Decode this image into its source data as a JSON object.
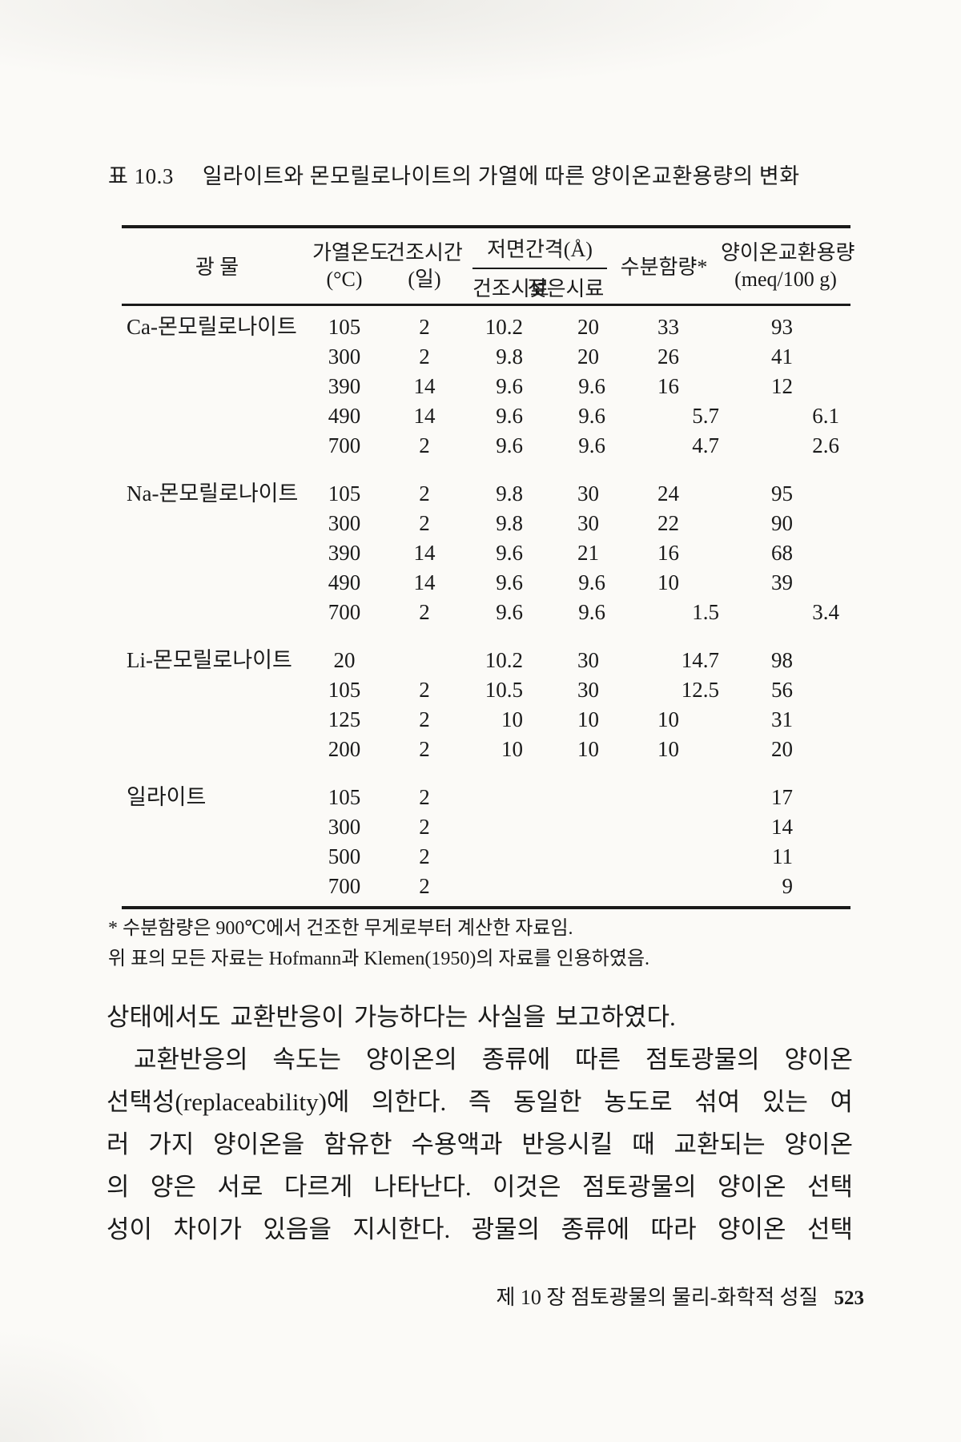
{
  "theme": {
    "ink": "#1a1a1a",
    "paper": "#fbfaf7"
  },
  "title": {
    "label": "표 10.3",
    "text": "일라이트와 몬모릴로나이트의 가열에 따른 양이온교환용량의 변화"
  },
  "table": {
    "headers": {
      "mineral": "광   물",
      "temp_line1": "가열온도",
      "temp_line2": "(°C)",
      "time_line1": "건조시간",
      "time_line2": "(일)",
      "spacing_group": "저면간격(Å)",
      "spacing_dry": "건조시료",
      "spacing_wet": "젖은시료",
      "moisture": "수분함량*",
      "cec_line1": "양이온교환용량",
      "cec_line2": "(meq/100 g)"
    },
    "groups": [
      {
        "mineral": "Ca-몬모릴로나이트",
        "rows": [
          [
            "105",
            "2",
            "10.2",
            "20",
            "33",
            "93"
          ],
          [
            "300",
            "2",
            "9.8",
            "20",
            "26",
            "41"
          ],
          [
            "390",
            "14",
            "9.6",
            "9.6",
            "16",
            "12"
          ],
          [
            "490",
            "14",
            "9.6",
            "9.6",
            "5.7",
            "6.1"
          ],
          [
            "700",
            "2",
            "9.6",
            "9.6",
            "4.7",
            "2.6"
          ]
        ]
      },
      {
        "mineral": "Na-몬모릴로나이트",
        "rows": [
          [
            "105",
            "2",
            "9.8",
            "30",
            "24",
            "95"
          ],
          [
            "300",
            "2",
            "9.8",
            "30",
            "22",
            "90"
          ],
          [
            "390",
            "14",
            "9.6",
            "21",
            "16",
            "68"
          ],
          [
            "490",
            "14",
            "9.6",
            "9.6",
            "10",
            "39"
          ],
          [
            "700",
            "2",
            "9.6",
            "9.6",
            "1.5",
            "3.4"
          ]
        ]
      },
      {
        "mineral": "Li-몬모릴로나이트",
        "rows": [
          [
            "20",
            "",
            "10.2",
            "30",
            "14.7",
            "98"
          ],
          [
            "105",
            "2",
            "10.5",
            "30",
            "12.5",
            "56"
          ],
          [
            "125",
            "2",
            "10",
            "10",
            "10",
            "31"
          ],
          [
            "200",
            "2",
            "10",
            "10",
            "10",
            "20"
          ]
        ]
      },
      {
        "mineral": "일라이트",
        "rows": [
          [
            "105",
            "2",
            "",
            "",
            "",
            "17"
          ],
          [
            "300",
            "2",
            "",
            "",
            "",
            "14"
          ],
          [
            "500",
            "2",
            "",
            "",
            "",
            "11"
          ],
          [
            "700",
            "2",
            "",
            "",
            "",
            "9"
          ]
        ]
      }
    ],
    "footnotes": [
      "* 수분함량은 900℃에서 건조한 무게로부터 계산한 자료임.",
      "위 표의 모든 자료는 Hofmann과 Klemen(1950)의 자료를 인용하였음."
    ]
  },
  "body_lines": [
    {
      "text": "상태에서도 교환반응이 가능하다는 사실을 보고하였다.",
      "indent": false,
      "justify": false
    },
    {
      "text": "교환반응의 속도는 양이온의 종류에 따른 점토광물의 양이온",
      "indent": true,
      "justify": true
    },
    {
      "text": "선택성(replaceability)에 의한다. 즉 동일한 농도로 섞여 있는 여",
      "indent": false,
      "justify": true
    },
    {
      "text": "러 가지 양이온을 함유한 수용액과 반응시킬 때 교환되는 양이온",
      "indent": false,
      "justify": true
    },
    {
      "text": "의 양은 서로 다르게 나타난다. 이것은 점토광물의 양이온 선택",
      "indent": false,
      "justify": true
    },
    {
      "text": "성이 차이가 있음을 지시한다. 광물의 종류에 따라 양이온 선택",
      "indent": false,
      "justify": true
    }
  ],
  "footer": {
    "chapter": "제 10 장   점토광물의 물리-화학적 성질",
    "page_number": "523"
  }
}
